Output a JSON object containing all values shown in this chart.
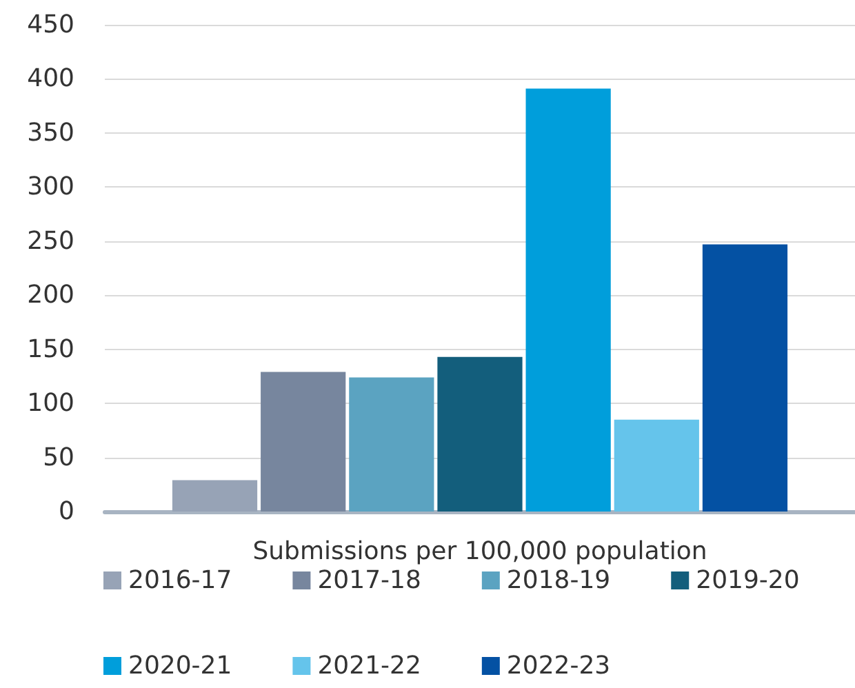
{
  "chart_data": {
    "type": "bar",
    "categories": [
      "Submissions per 100,000 population"
    ],
    "series": [
      {
        "name": "2016-17",
        "color": "#97a3b6",
        "values": [
          29
        ]
      },
      {
        "name": "2017-18",
        "color": "#77869e",
        "values": [
          129
        ]
      },
      {
        "name": "2018-19",
        "color": "#5ba3c1",
        "values": [
          124
        ]
      },
      {
        "name": "2019-20",
        "color": "#135e7c",
        "values": [
          143
        ]
      },
      {
        "name": "2020-21",
        "color": "#009edb",
        "values": [
          391
        ]
      },
      {
        "name": "2021-22",
        "color": "#65c4eb",
        "values": [
          85
        ]
      },
      {
        "name": "2022-23",
        "color": "#0451a3",
        "values": [
          247
        ]
      }
    ],
    "ylim": [
      0,
      450
    ],
    "yticks": [
      0,
      50,
      100,
      150,
      200,
      250,
      300,
      350,
      400,
      450
    ],
    "grid": "y",
    "legend": "bottom"
  }
}
